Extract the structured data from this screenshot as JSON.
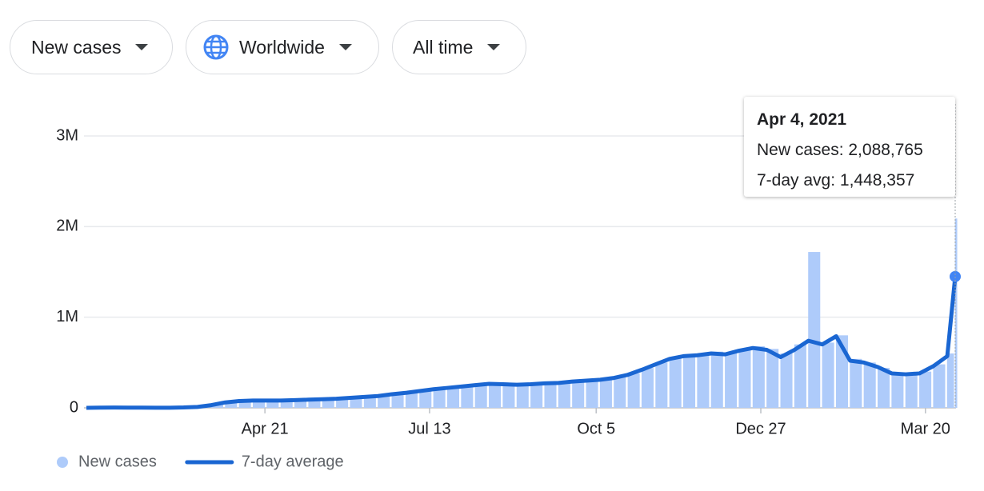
{
  "controls": {
    "metric": "New cases",
    "region": "Worldwide",
    "period": "All time"
  },
  "chart_data": {
    "type": "bar-line",
    "x": [
      0,
      7,
      14,
      21,
      28,
      35,
      42,
      49,
      56,
      63,
      70,
      77,
      84,
      91,
      98,
      105,
      112,
      119,
      126,
      133,
      140,
      147,
      154,
      161,
      168,
      175,
      182,
      189,
      196,
      203,
      210,
      217,
      224,
      231,
      238,
      245,
      252,
      259,
      266,
      273,
      280,
      287,
      294,
      301,
      308,
      315,
      322,
      329,
      336,
      343,
      350,
      357,
      364,
      371,
      378,
      385,
      392,
      399,
      406,
      413,
      420,
      427,
      434,
      438
    ],
    "xlim": [
      0,
      438
    ],
    "xticks": [
      {
        "value": 90,
        "label": "Apr 21"
      },
      {
        "value": 173,
        "label": "Jul 13"
      },
      {
        "value": 257,
        "label": "Oct 5"
      },
      {
        "value": 340,
        "label": "Dec 27"
      },
      {
        "value": 423,
        "label": "Mar 20"
      }
    ],
    "ylim": [
      0,
      3000000
    ],
    "yticks": [
      0,
      {
        "value": 1000000,
        "label": "1M"
      },
      {
        "value": 2000000,
        "label": "2M"
      },
      {
        "value": 3000000,
        "label": "3M"
      }
    ],
    "grid": true,
    "series": [
      {
        "name": "New cases",
        "kind": "bar",
        "color": "#aecbfa",
        "values": [
          500,
          2500,
          3500,
          2000,
          2000,
          1500,
          1500,
          5000,
          12000,
          35000,
          65000,
          78000,
          85000,
          82000,
          82000,
          88000,
          92000,
          98000,
          105000,
          115000,
          125000,
          135000,
          155000,
          170000,
          190000,
          210000,
          230000,
          240000,
          255000,
          270000,
          265000,
          255000,
          265000,
          275000,
          280000,
          295000,
          305000,
          320000,
          340000,
          380000,
          440000,
          500000,
          560000,
          590000,
          600000,
          620000,
          600000,
          650000,
          680000,
          650000,
          600000,
          700000,
          1720000,
          720000,
          800000,
          540000,
          500000,
          440000,
          370000,
          380000,
          400000,
          480000,
          600000,
          2088765
        ]
      },
      {
        "name": "7-day average",
        "kind": "line",
        "color": "#1a66d2",
        "values": [
          500,
          2000,
          3000,
          2500,
          2000,
          1500,
          1500,
          4000,
          10000,
          30000,
          60000,
          75000,
          80000,
          80000,
          80000,
          85000,
          90000,
          95000,
          100000,
          110000,
          120000,
          130000,
          150000,
          165000,
          185000,
          205000,
          220000,
          235000,
          250000,
          265000,
          260000,
          255000,
          260000,
          270000,
          275000,
          290000,
          300000,
          310000,
          330000,
          365000,
          420000,
          480000,
          540000,
          570000,
          580000,
          600000,
          590000,
          630000,
          660000,
          640000,
          560000,
          640000,
          740000,
          700000,
          790000,
          520000,
          500000,
          450000,
          380000,
          370000,
          380000,
          460000,
          570000,
          1448357
        ]
      }
    ],
    "legend": "bottom",
    "tooltip": {
      "date": "Apr 4, 2021",
      "lines": [
        "New cases: 2,088,765",
        "7-day avg: 1,448,357"
      ]
    }
  }
}
